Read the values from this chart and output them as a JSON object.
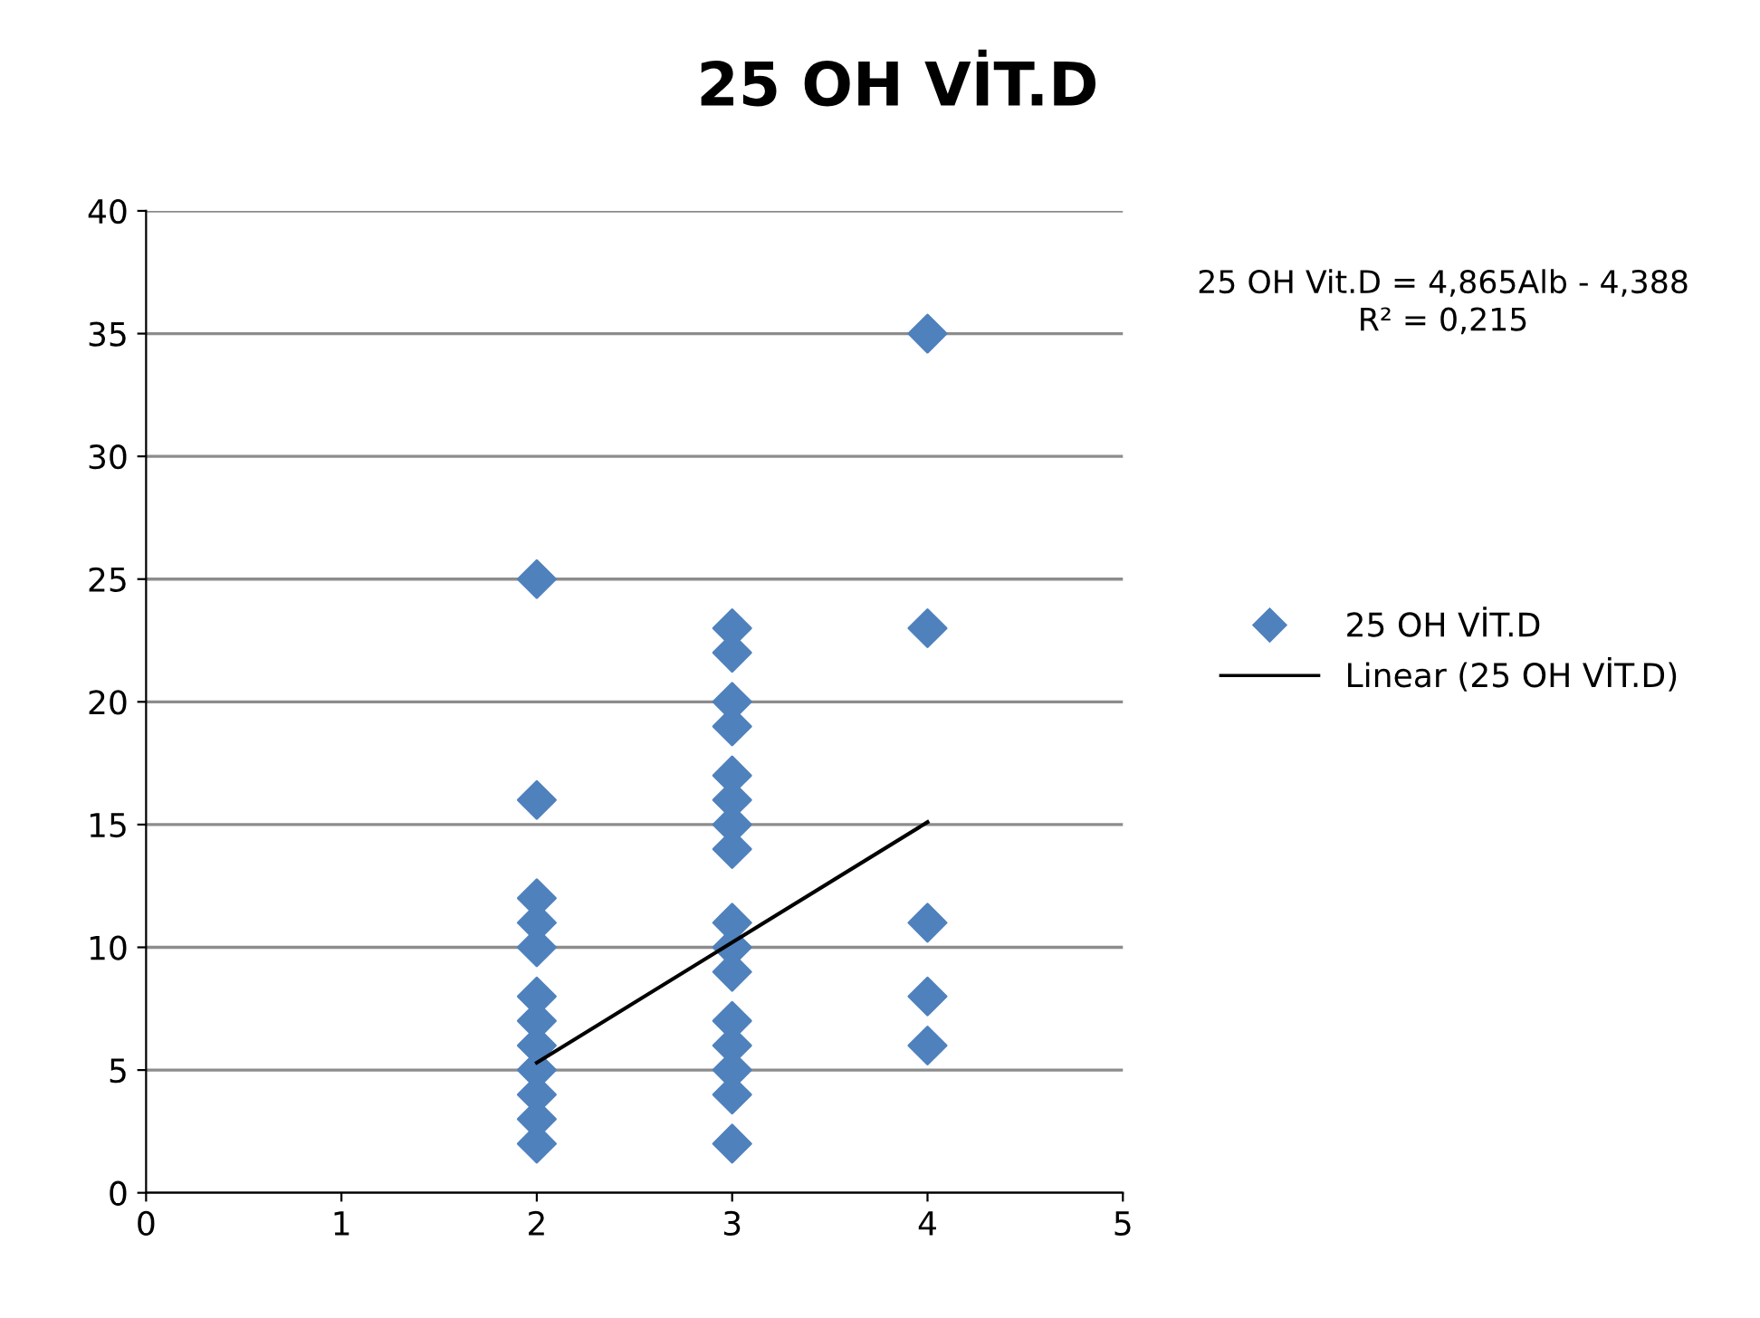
{
  "chart_data": {
    "type": "scatter",
    "title": "25 OH VİT.D",
    "series": [
      {
        "name": "25 OH VİT.D",
        "color": "#4f81bd",
        "marker": "diamond",
        "x": [
          2,
          2,
          2,
          2,
          2,
          2,
          2,
          2,
          2,
          2,
          2,
          2,
          3,
          3,
          3,
          3,
          3,
          3,
          3,
          3,
          3,
          3,
          3,
          3,
          3,
          3,
          3,
          3,
          4,
          4,
          4,
          4,
          4
        ],
        "values": [
          25,
          16,
          12,
          11,
          10,
          8,
          7,
          6,
          5,
          4,
          3,
          2,
          23,
          22,
          20,
          19,
          17,
          16,
          15,
          14,
          11,
          10,
          9,
          7,
          6,
          5,
          4,
          2,
          35,
          23,
          11,
          8,
          6
        ]
      },
      {
        "name": "Linear (25 OH VİT.D)",
        "type": "line",
        "color": "#000000",
        "line_style": "solid",
        "marker": "none",
        "x": [
          2,
          4
        ],
        "values": [
          5.3,
          15.1
        ]
      }
    ],
    "annotations": [
      "25 OH Vit.D = 4,865Alb - 4,388",
      "R² = 0,215"
    ],
    "xlim": [
      0,
      5
    ],
    "xticks": [
      0,
      1,
      2,
      3,
      4,
      5
    ],
    "ylim": [
      0,
      40
    ],
    "yticks": [
      0,
      5,
      10,
      15,
      20,
      25,
      30,
      35,
      40
    ],
    "grid": "y",
    "legend": "right"
  }
}
